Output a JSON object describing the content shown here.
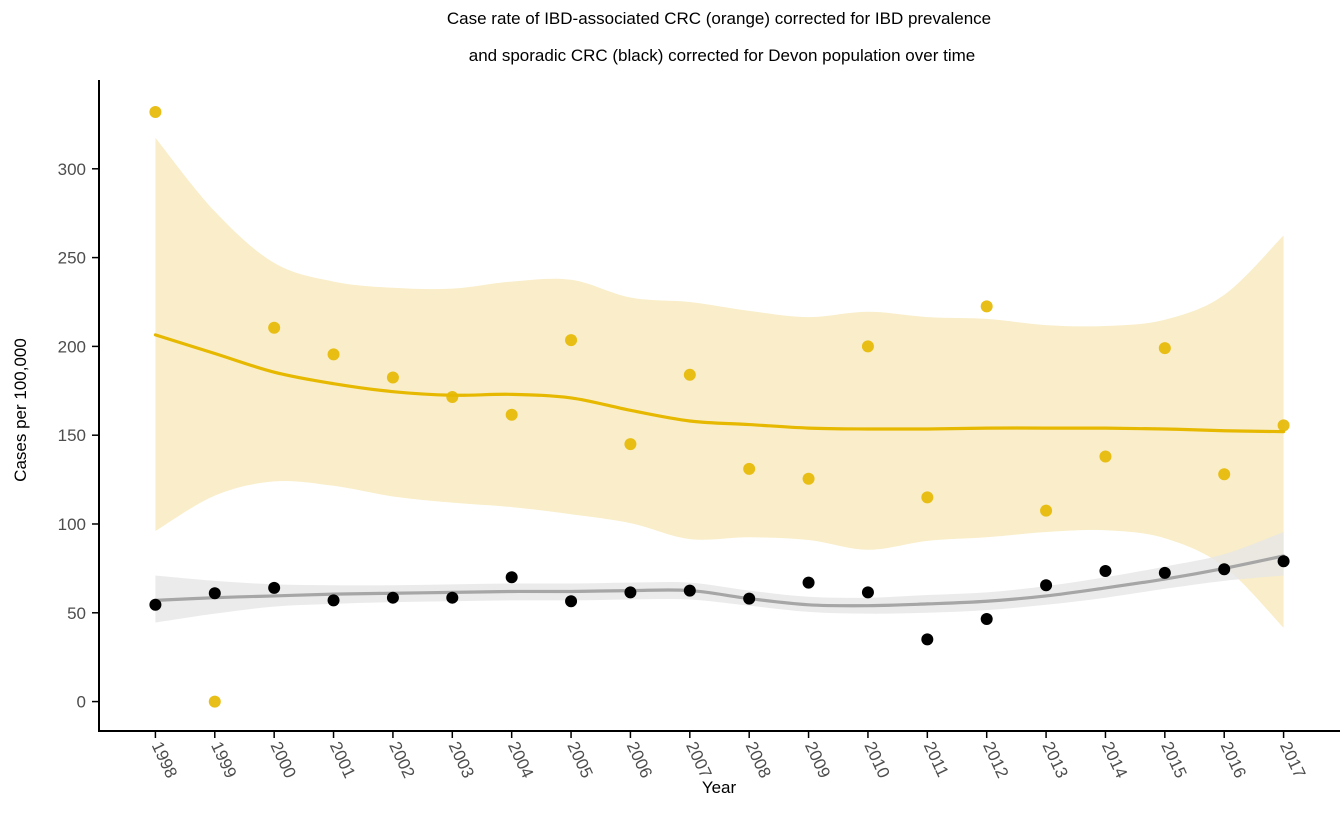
{
  "chart_data": {
    "type": "scatter",
    "title_lines": [
      "Case rate of IBD-associated CRC (orange) corrected for IBD prevalence",
      "and sporadic CRC (black) corrected for Devon population over time"
    ],
    "xlabel": "Year",
    "ylabel": "Cases per 100,000",
    "x_ticks": [
      "1998",
      "1999",
      "2000",
      "2001",
      "2002",
      "2003",
      "2004",
      "2005",
      "2006",
      "2007",
      "2008",
      "2009",
      "2010",
      "2011",
      "2012",
      "2013",
      "2014",
      "2015",
      "2016",
      "2017"
    ],
    "y_ticks": [
      0,
      50,
      100,
      150,
      200,
      250,
      300
    ],
    "xlim": [
      1997.05,
      2017.95
    ],
    "ylim": [
      -16,
      350
    ],
    "grid": false,
    "legend": "none",
    "series": [
      {
        "color": "#E6B800",
        "x": [
          1998,
          1999,
          2000,
          2001,
          2002,
          2003,
          2004,
          2005,
          2006,
          2007,
          2008,
          2009,
          2010,
          2011,
          2012,
          2013,
          2014,
          2015,
          2016,
          2017
        ],
        "values": [
          332,
          0,
          210.5,
          195.5,
          182.5,
          171.5,
          161.5,
          203.5,
          145,
          184,
          131,
          125.5,
          200,
          115,
          222.5,
          107.5,
          138,
          199,
          128,
          155.5
        ],
        "smooth": {
          "line": [
            206.5,
            196,
            185.5,
            179,
            174.5,
            172.5,
            173,
            171,
            164,
            158,
            156,
            154,
            153.5,
            153.5,
            154,
            154,
            154,
            153.5,
            152.5,
            152
          ],
          "lower": [
            96,
            116,
            124,
            121.5,
            115.5,
            112,
            109.5,
            105.5,
            100.5,
            91.5,
            92.5,
            91,
            85.5,
            90.5,
            92.5,
            95.5,
            96.5,
            92,
            76,
            41.5
          ],
          "upper": [
            317.5,
            276,
            247,
            236.5,
            233,
            232.5,
            236.5,
            237.5,
            227.5,
            225,
            220,
            216.5,
            219.5,
            216.5,
            215.5,
            212,
            211.5,
            215,
            229,
            262.5
          ]
        }
      },
      {
        "color": "#000000",
        "x": [
          1998,
          1999,
          2000,
          2001,
          2002,
          2003,
          2004,
          2005,
          2006,
          2007,
          2008,
          2009,
          2010,
          2011,
          2012,
          2013,
          2014,
          2015,
          2016,
          2017
        ],
        "values": [
          54.5,
          61,
          64,
          57,
          58.5,
          58.5,
          70,
          56.5,
          61.5,
          62.5,
          58,
          67,
          61.5,
          35,
          46.5,
          65.5,
          73.5,
          72.5,
          74.5,
          79
        ],
        "smooth": {
          "line": [
            57,
            58.5,
            59.5,
            60.5,
            61,
            61.5,
            62,
            62,
            62.5,
            62.5,
            58,
            54.5,
            54,
            55,
            56.5,
            59.5,
            64,
            69,
            75,
            82
          ],
          "lower": [
            44.5,
            49.5,
            53.5,
            55,
            56,
            56.5,
            57,
            57,
            57.5,
            57.5,
            54,
            50.5,
            49.5,
            50,
            51.5,
            54.5,
            58.5,
            63.5,
            68,
            71
          ],
          "upper": [
            71,
            68,
            66,
            65.5,
            65.5,
            66,
            66.5,
            66.5,
            67,
            67,
            62.5,
            59,
            58.5,
            60,
            61.5,
            65,
            70,
            76,
            83,
            95.5
          ]
        }
      }
    ]
  },
  "colors": {
    "ibd_band": "#F8EBC0",
    "sporadic_band": "#E6E6E6",
    "sporadic_line": "#A6A6A6",
    "sporadic_points": "#000000"
  }
}
